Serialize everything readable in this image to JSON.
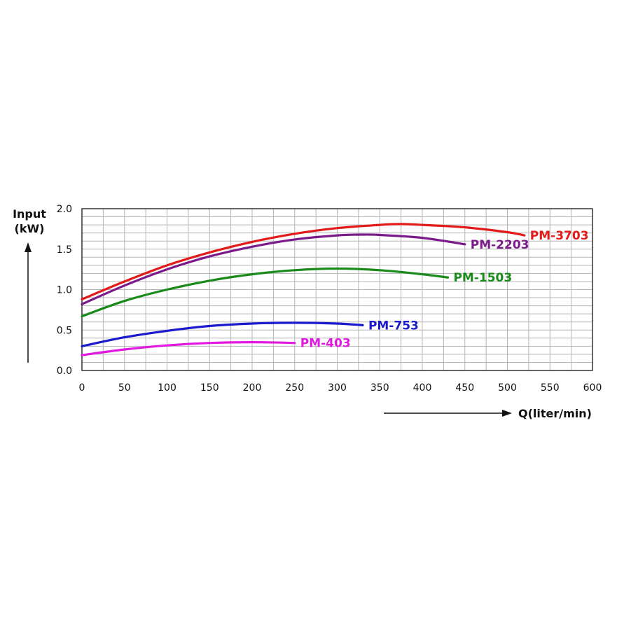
{
  "chart_data": {
    "type": "line",
    "title": "",
    "ylabel_line1": "Input",
    "ylabel_line2": "(kW)",
    "xlabel": "Q(liter/min)",
    "xlim": [
      0,
      600
    ],
    "ylim": [
      0,
      2
    ],
    "x_ticks": [
      "0",
      "50",
      "100",
      "150",
      "200",
      "250",
      "300",
      "350",
      "400",
      "450",
      "500",
      "550",
      "600"
    ],
    "y_ticks": [
      "0.0",
      "0.5",
      "1.0",
      "1.5",
      "2.0"
    ],
    "grid": true,
    "series": [
      {
        "name": "PM-3703",
        "color": "#e31a1a",
        "x": [
          0,
          50,
          100,
          150,
          200,
          250,
          300,
          350,
          375,
          400,
          450,
          500,
          520
        ],
        "y": [
          0.88,
          1.1,
          1.3,
          1.46,
          1.59,
          1.69,
          1.76,
          1.8,
          1.81,
          1.8,
          1.77,
          1.71,
          1.67
        ]
      },
      {
        "name": "PM-2203",
        "color": "#7b1a8b",
        "x": [
          0,
          50,
          100,
          150,
          200,
          250,
          300,
          330,
          350,
          400,
          450
        ],
        "y": [
          0.82,
          1.05,
          1.25,
          1.41,
          1.53,
          1.62,
          1.67,
          1.68,
          1.675,
          1.64,
          1.56
        ]
      },
      {
        "name": "PM-1503",
        "color": "#1a8a1a",
        "x": [
          0,
          50,
          100,
          150,
          200,
          250,
          300,
          350,
          400,
          430
        ],
        "y": [
          0.67,
          0.86,
          1.0,
          1.11,
          1.19,
          1.24,
          1.26,
          1.24,
          1.19,
          1.15
        ]
      },
      {
        "name": "PM-753",
        "color": "#1a1acc",
        "x": [
          0,
          50,
          100,
          150,
          200,
          250,
          300,
          330
        ],
        "y": [
          0.3,
          0.41,
          0.49,
          0.55,
          0.58,
          0.59,
          0.58,
          0.56
        ]
      },
      {
        "name": "PM-403",
        "color": "#e01ae0",
        "x": [
          0,
          50,
          100,
          150,
          200,
          250
        ],
        "y": [
          0.19,
          0.26,
          0.31,
          0.34,
          0.35,
          0.34
        ]
      }
    ]
  }
}
